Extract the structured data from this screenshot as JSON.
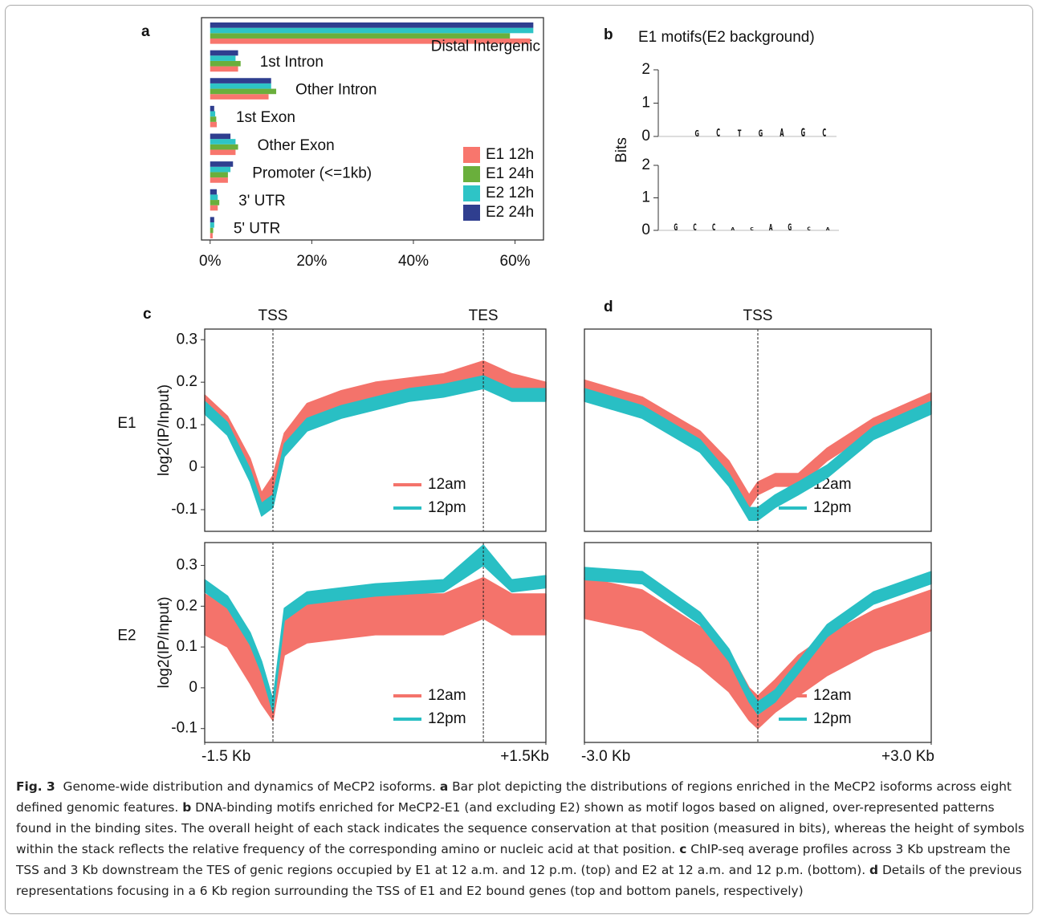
{
  "chart_data": [
    {
      "type": "bar",
      "panel": "a",
      "categories": [
        "Distal Intergenic",
        "1st Intron",
        "Other Intron",
        "1st Exon",
        "Other Exon",
        "Promoter (<=1kb)",
        "3' UTR",
        "5' UTR"
      ],
      "series": [
        {
          "name": "E1 12h",
          "color": "#f8766d",
          "values": [
            63,
            5.5,
            11.5,
            1.3,
            5,
            3.5,
            1.5,
            0.5
          ]
        },
        {
          "name": "E1 24h",
          "color": "#6aaf3c",
          "values": [
            59,
            6,
            13,
            1.2,
            5.5,
            3.5,
            1.8,
            0.6
          ]
        },
        {
          "name": "E2 12h",
          "color": "#2ec4c6",
          "values": [
            63.6,
            5,
            12,
            1,
            5,
            4,
            1.5,
            0.8
          ]
        },
        {
          "name": "E2 24h",
          "color": "#2f3e8f",
          "values": [
            63.6,
            5.5,
            12,
            0.8,
            4,
            4.5,
            1.3,
            0.8
          ]
        }
      ],
      "xlim": [
        -1.7,
        65.6
      ],
      "xticks": [
        {
          "value": 0,
          "label": "0%"
        },
        {
          "value": 20,
          "label": "20%"
        },
        {
          "value": 40,
          "label": "40%"
        },
        {
          "value": 60,
          "label": "60%"
        }
      ]
    },
    {
      "type": "logo",
      "panel": "b",
      "title": "E1 motifs(E2 background)",
      "ylabel": "Bits",
      "ylim": [
        0,
        2
      ],
      "yticks": [
        0,
        1,
        2
      ],
      "letter_colors": {
        "A": "#2ca02c",
        "C": "#3a5fcd",
        "G": "#f5a623",
        "T": "#d62728"
      },
      "motifs": [
        {
          "letters": [
            "G",
            "C",
            "T",
            "G",
            "A",
            "G",
            "C"
          ],
          "heights": [
            1.0,
            1.2,
            1.1,
            1.1,
            1.2,
            1.3,
            1.2
          ]
        },
        {
          "letters": [
            "G",
            "C",
            "C",
            "A",
            "C",
            "A",
            "G",
            "C",
            "A"
          ],
          "heights": [
            1.1,
            1.1,
            1.1,
            0.5,
            0.5,
            1.0,
            1.1,
            0.6,
            0.5
          ]
        }
      ]
    },
    {
      "type": "band",
      "panel": "c",
      "row_label": "E1",
      "ylabel": "log2(IP/Input)",
      "xlim": [
        -1.5,
        1.5
      ],
      "ylim": [
        -0.151,
        0.325
      ],
      "yticks": [
        -0.1,
        0,
        0.1,
        0.2,
        0.3
      ],
      "vlines": [
        {
          "value": -0.9,
          "label": "TSS"
        },
        {
          "value": 0.95,
          "label": "TES"
        }
      ],
      "x": [
        -1.5,
        -1.3,
        -1.1,
        -1.0,
        -0.9,
        -0.8,
        -0.6,
        -0.3,
        0,
        0.3,
        0.6,
        0.95,
        1.2,
        1.5
      ],
      "series": [
        {
          "name": "12am",
          "color": "#f4736b",
          "low": [
            0.13,
            0.08,
            -0.02,
            -0.1,
            -0.06,
            0.04,
            0.11,
            0.14,
            0.16,
            0.17,
            0.18,
            0.21,
            0.18,
            0.16
          ],
          "high": [
            0.17,
            0.12,
            0.02,
            -0.06,
            -0.02,
            0.08,
            0.15,
            0.18,
            0.2,
            0.21,
            0.22,
            0.25,
            0.22,
            0.2
          ]
        },
        {
          "name": "12pm",
          "color": "#29bfc4",
          "low": [
            0.125,
            0.075,
            -0.035,
            -0.115,
            -0.095,
            0.025,
            0.085,
            0.115,
            0.135,
            0.155,
            0.165,
            0.185,
            0.155,
            0.155
          ],
          "high": [
            0.155,
            0.105,
            -0.005,
            -0.085,
            -0.065,
            0.055,
            0.115,
            0.145,
            0.165,
            0.185,
            0.195,
            0.215,
            0.185,
            0.185
          ]
        }
      ]
    },
    {
      "type": "band",
      "panel": "d",
      "xlim": [
        -3,
        3
      ],
      "ylim": [
        -0.151,
        0.325
      ],
      "vlines": [
        {
          "value": 0,
          "label": "TSS"
        }
      ],
      "x": [
        -3,
        -2,
        -1,
        -0.5,
        -0.15,
        0,
        0.3,
        0.7,
        1.2,
        2,
        3
      ],
      "series": [
        {
          "name": "12am",
          "color": "#f4736b",
          "low": [
            0.175,
            0.135,
            0.055,
            -0.015,
            -0.095,
            -0.065,
            -0.045,
            -0.045,
            0.015,
            0.085,
            0.145
          ],
          "high": [
            0.205,
            0.165,
            0.085,
            0.015,
            -0.065,
            -0.035,
            -0.015,
            -0.015,
            0.045,
            0.115,
            0.175
          ]
        },
        {
          "name": "12pm",
          "color": "#29bfc4",
          "low": [
            0.155,
            0.115,
            0.035,
            -0.045,
            -0.125,
            -0.125,
            -0.095,
            -0.065,
            -0.025,
            0.065,
            0.125
          ],
          "high": [
            0.185,
            0.145,
            0.065,
            -0.015,
            -0.095,
            -0.095,
            -0.065,
            -0.035,
            0.005,
            0.095,
            0.155
          ]
        }
      ]
    },
    {
      "type": "band",
      "row_label": "E2",
      "ylabel": "log2(IP/Input)",
      "xlim": [
        -1.5,
        1.5
      ],
      "ylim": [
        -0.134,
        0.356
      ],
      "yticks": [
        -0.1,
        0,
        0.1,
        0.2,
        0.3
      ],
      "xticks": [
        {
          "value": -1.5,
          "label": "-1.5 Kb"
        },
        {
          "value": 1.5,
          "label": "+1.5Kb"
        }
      ],
      "vlines": [
        -0.9,
        0.95
      ],
      "x": [
        -1.5,
        -1.3,
        -1.1,
        -1.0,
        -0.9,
        -0.8,
        -0.6,
        -0.3,
        0,
        0.3,
        0.6,
        0.95,
        1.2,
        1.5
      ],
      "series": [
        {
          "name": "12am",
          "color": "#f4736b",
          "low": [
            0.13,
            0.1,
            0.01,
            -0.04,
            -0.08,
            0.08,
            0.11,
            0.12,
            0.13,
            0.13,
            0.13,
            0.17,
            0.13,
            0.13
          ],
          "high": [
            0.23,
            0.2,
            0.11,
            0.05,
            -0.03,
            0.18,
            0.21,
            0.22,
            0.23,
            0.23,
            0.23,
            0.27,
            0.23,
            0.23
          ]
        },
        {
          "name": "12pm",
          "color": "#29bfc4",
          "low": [
            0.235,
            0.195,
            0.105,
            0.035,
            -0.06,
            0.165,
            0.205,
            0.215,
            0.225,
            0.23,
            0.235,
            0.3,
            0.235,
            0.245
          ],
          "high": [
            0.265,
            0.225,
            0.135,
            0.065,
            -0.03,
            0.195,
            0.235,
            0.245,
            0.255,
            0.26,
            0.265,
            0.35,
            0.265,
            0.275
          ]
        }
      ]
    },
    {
      "type": "band",
      "xlim": [
        -3,
        3
      ],
      "ylim": [
        -0.134,
        0.356
      ],
      "xticks": [
        {
          "value": -3,
          "label": "-3.0 Kb"
        },
        {
          "value": 3,
          "label": "+3.0 Kb"
        }
      ],
      "vlines": [
        0
      ],
      "x": [
        -3,
        -2,
        -1,
        -0.5,
        -0.15,
        0,
        0.3,
        0.7,
        1.2,
        2,
        3
      ],
      "series": [
        {
          "name": "12am",
          "color": "#f4736b",
          "low": [
            0.17,
            0.14,
            0.05,
            -0.01,
            -0.08,
            -0.1,
            -0.06,
            -0.02,
            0.03,
            0.09,
            0.14
          ],
          "high": [
            0.27,
            0.24,
            0.15,
            0.09,
            0.0,
            -0.02,
            0.02,
            0.08,
            0.13,
            0.19,
            0.24
          ]
        },
        {
          "name": "12pm",
          "color": "#29bfc4",
          "low": [
            0.265,
            0.255,
            0.155,
            0.065,
            -0.035,
            -0.065,
            -0.035,
            0.035,
            0.125,
            0.205,
            0.255
          ],
          "high": [
            0.295,
            0.285,
            0.185,
            0.095,
            -0.005,
            -0.035,
            -0.005,
            0.065,
            0.155,
            0.235,
            0.285
          ]
        }
      ]
    }
  ],
  "caption": [
    {
      "text": "Fig. 3",
      "bold": true
    },
    {
      "text": "  Genome-wide distribution and dynamics of MeCP2 isoforms. ",
      "bold": false
    },
    {
      "text": "a",
      "bold": true
    },
    {
      "text": " Bar plot depicting the distributions of regions enriched in the MeCP2 isoforms across eight defined genomic features. ",
      "bold": false
    },
    {
      "text": "b",
      "bold": true
    },
    {
      "text": " DNA-binding motifs enriched for MeCP2-E1 (and excluding E2) shown as motif logos based on aligned, over-represented patterns found in the binding sites. The overall height of each stack indicates the sequence conservation at that position (measured in bits), whereas the height of symbols within the stack reflects the relative frequency of the corresponding amino or nucleic acid at that position. ",
      "bold": false
    },
    {
      "text": "c",
      "bold": true
    },
    {
      "text": " ChIP-seq average profiles across 3 Kb upstream the TSS and 3 Kb downstream the TES of genic regions occupied by E1 at 12 a.m. and 12 p.m. (top) and E2 at 12 a.m. and 12 p.m. (bottom). ",
      "bold": false
    },
    {
      "text": "d",
      "bold": true
    },
    {
      "text": " Details of the previous representations focusing in a 6 Kb region surrounding the TSS of E1 and E2 bound genes (top and bottom panels, respectively)",
      "bold": false
    }
  ]
}
